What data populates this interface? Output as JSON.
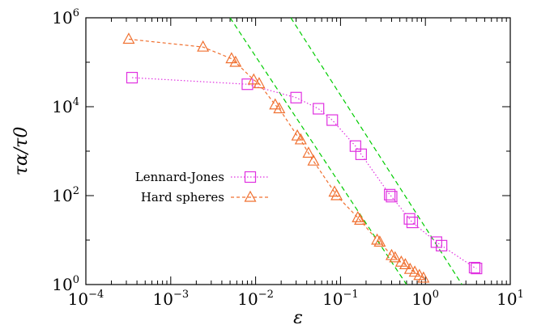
{
  "chart_data": {
    "type": "scatter",
    "xlabel": "ε",
    "ylabel": "τα/τ0",
    "xscale": "log",
    "yscale": "log",
    "xlim": [
      0.0001,
      10
    ],
    "ylim": [
      1,
      1000000
    ],
    "x_ticks": [
      {
        "base": "10",
        "exp": "−4",
        "value": 0.0001
      },
      {
        "base": "10",
        "exp": "−3",
        "value": 0.001
      },
      {
        "base": "10",
        "exp": "−2",
        "value": 0.01
      },
      {
        "base": "10",
        "exp": "−1",
        "value": 0.1
      },
      {
        "base": "10",
        "exp": "0",
        "value": 1
      },
      {
        "base": "10",
        "exp": "1",
        "value": 10
      }
    ],
    "y_ticks": [
      {
        "base": "10",
        "exp": "0",
        "value": 1
      },
      {
        "base": "10",
        "exp": "2",
        "value": 100
      },
      {
        "base": "10",
        "exp": "4",
        "value": 10000
      },
      {
        "base": "10",
        "exp": "6",
        "value": 1000000
      }
    ],
    "grid": false,
    "legend_position": "left-middle",
    "series": [
      {
        "name": "Lennard-Jones",
        "marker": "square",
        "line_style": "dotted",
        "color": "#e030e0",
        "x": [
          0.00035,
          0.008,
          0.03,
          0.055,
          0.08,
          0.15,
          0.175,
          0.38,
          0.4,
          0.65,
          0.7,
          1.35,
          1.55,
          3.8,
          4.0
        ],
        "y": [
          45000,
          32000,
          16000,
          9000,
          5000,
          1300,
          850,
          105,
          95,
          30,
          25,
          9,
          7.5,
          2.4,
          2.3
        ]
      },
      {
        "name": "Hard spheres",
        "marker": "triangle",
        "line_style": "dashed",
        "color": "#f07030",
        "x": [
          0.00032,
          0.0024,
          0.0052,
          0.0058,
          0.0095,
          0.011,
          0.017,
          0.019,
          0.031,
          0.034,
          0.042,
          0.048,
          0.085,
          0.09,
          0.16,
          0.17,
          0.27,
          0.29,
          0.4,
          0.44,
          0.52,
          0.58,
          0.66,
          0.75,
          0.85,
          0.95
        ],
        "y": [
          330000,
          220000,
          120000,
          100000,
          40000,
          33000,
          11000,
          9000,
          2200,
          1800,
          900,
          600,
          120,
          100,
          32,
          28,
          10,
          9,
          4.5,
          4,
          3.2,
          2.8,
          2.2,
          1.9,
          1.6,
          1.4
        ]
      }
    ],
    "reference_lines": [
      {
        "style": "dashed",
        "color": "#00cc00",
        "points": [
          [
            0.005,
            1000000
          ],
          [
            0.6,
            1
          ]
        ]
      },
      {
        "style": "dashed",
        "color": "#00cc00",
        "points": [
          [
            0.026,
            1000000
          ],
          [
            2.7,
            1
          ]
        ]
      }
    ]
  }
}
